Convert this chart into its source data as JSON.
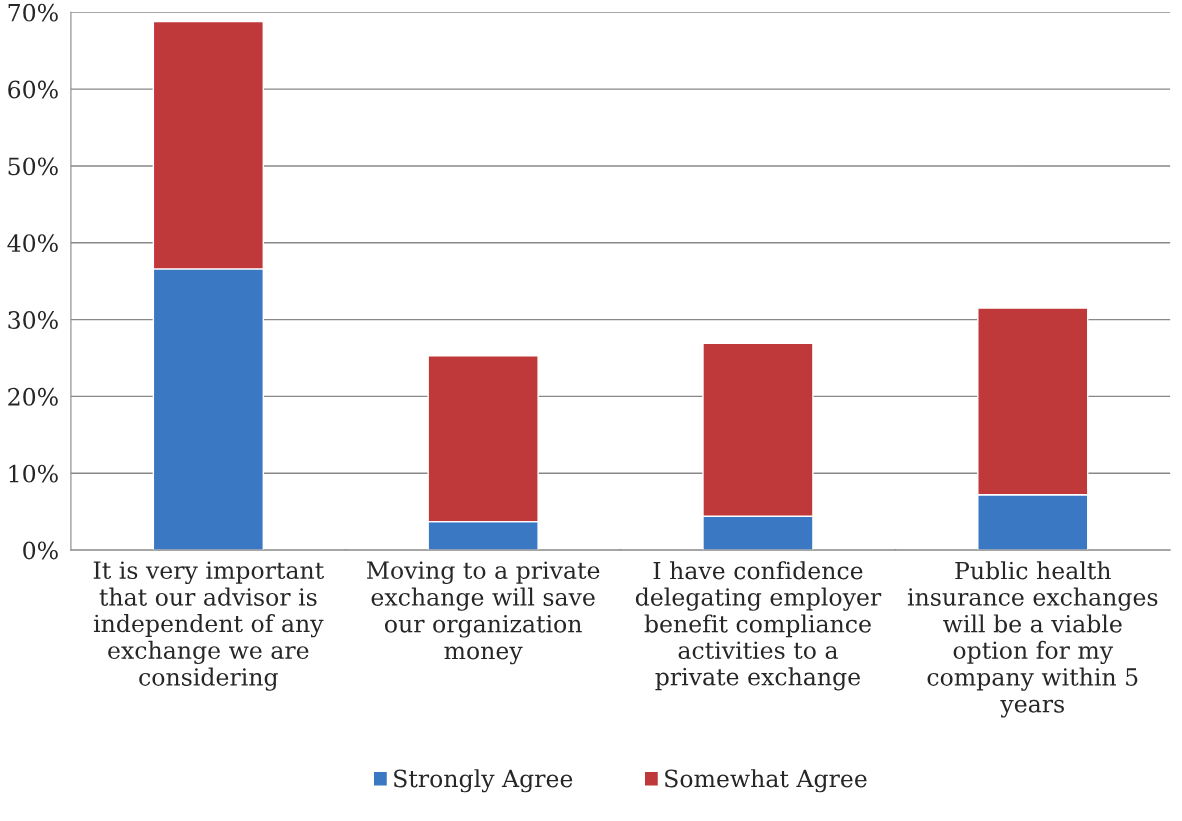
{
  "chart_data": {
    "type": "bar",
    "stacked": true,
    "categories": [
      "It is very important that our advisor is independent of any exchange we are considering",
      "Moving to a private exchange will save our organization money",
      "I have confidence delegating employer benefit compliance activities to a private exchange",
      "Public health insurance exchanges will be a viable option for my company within 5 years"
    ],
    "series": [
      {
        "name": "Strongly Agree",
        "color": "#3a78c4",
        "values": [
          36.6,
          3.7,
          4.4,
          7.2
        ]
      },
      {
        "name": "Somewhat Agree",
        "color": "#c0393a",
        "values": [
          32.2,
          21.6,
          22.5,
          24.3
        ]
      }
    ],
    "ylim": [
      0,
      70
    ],
    "yticks": [
      {
        "value": 0,
        "label": "0%"
      },
      {
        "value": 10,
        "label": "10%"
      },
      {
        "value": 20,
        "label": "20%"
      },
      {
        "value": 30,
        "label": "30%"
      },
      {
        "value": 40,
        "label": "40%"
      },
      {
        "value": 50,
        "label": "50%"
      },
      {
        "value": 60,
        "label": "60%"
      },
      {
        "value": 70,
        "label": "70%"
      }
    ],
    "grid": "y",
    "legend": "bottom"
  }
}
